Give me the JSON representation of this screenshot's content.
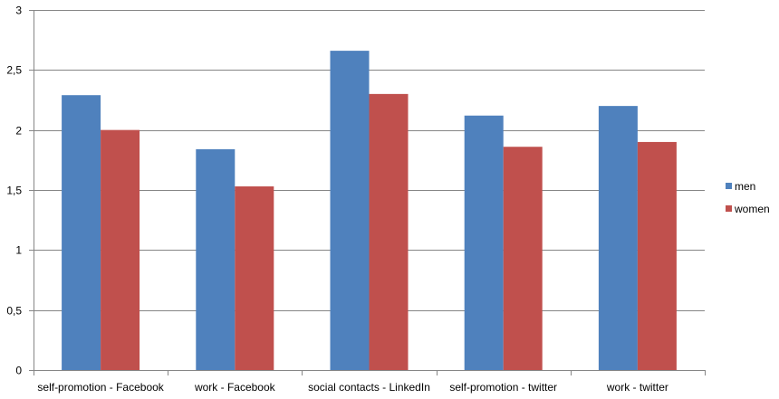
{
  "chart_data": {
    "type": "bar",
    "categories": [
      "self-promotion - Facebook",
      "work - Facebook",
      "social contacts - LinkedIn",
      "self-promotion - twitter",
      "work - twitter"
    ],
    "series": [
      {
        "name": "men",
        "values": [
          2.29,
          1.84,
          2.66,
          2.12,
          2.2
        ],
        "color": "#4F81BD"
      },
      {
        "name": "women",
        "values": [
          2.0,
          1.53,
          2.3,
          1.86,
          1.9
        ],
        "color": "#C0504D"
      }
    ],
    "yticks": [
      "0",
      "0,5",
      "1",
      "1,5",
      "2",
      "2,5",
      "3"
    ],
    "ylim": [
      0,
      3
    ],
    "ytick_step": 0.5,
    "grid": true,
    "legend": "right",
    "gridline_color": "#868686",
    "axis_color": "#868686"
  }
}
